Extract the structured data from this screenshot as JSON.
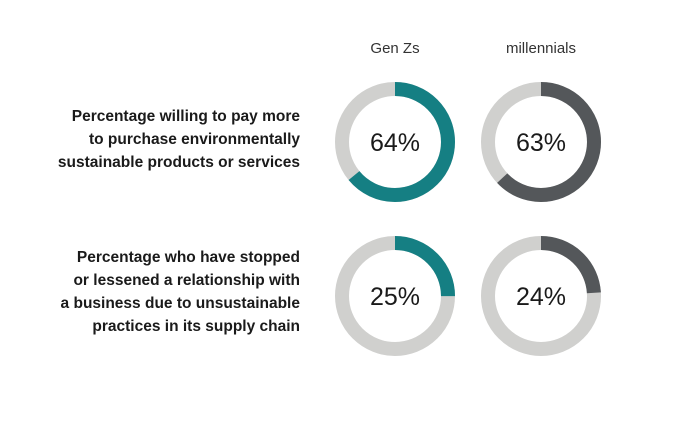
{
  "chart_data": {
    "type": "donut",
    "columns": [
      "Gen Zs",
      "millennials"
    ],
    "rows": [
      {
        "label_lines": [
          "Percentage willing to pay more",
          "to purchase environmentally",
          "sustainable products or services"
        ],
        "values": [
          64,
          63
        ],
        "value_labels": [
          "64%",
          "63%"
        ]
      },
      {
        "label_lines": [
          "Percentage who have stopped",
          "or lessened a relationship with",
          "a business due to unsustainable",
          "practices in its supply chain"
        ],
        "values": [
          25,
          24
        ],
        "value_labels": [
          "25%",
          "24%"
        ]
      }
    ],
    "max": 100
  },
  "colors": {
    "gen_z": "#157f83",
    "millennials": "#54575a",
    "track": "#d0d0ce"
  }
}
